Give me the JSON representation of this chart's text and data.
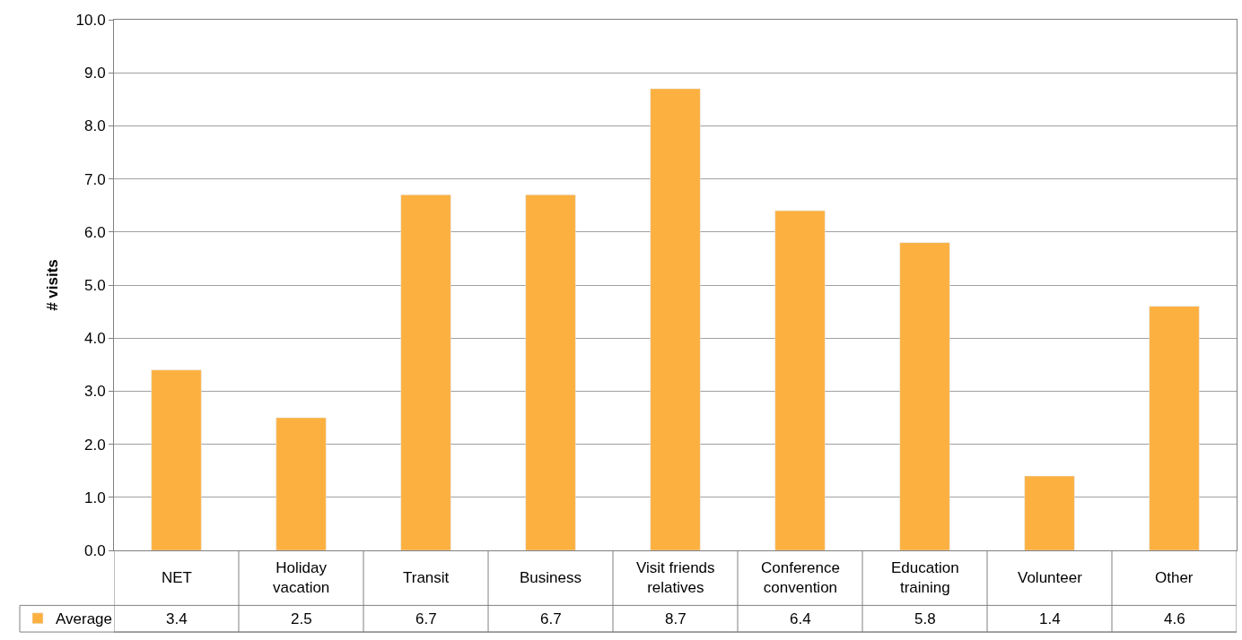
{
  "chart_data": {
    "type": "bar",
    "ylabel": "# visits",
    "categories": [
      "NET",
      "Holiday\nvacation",
      "Transit",
      "Business",
      "Visit friends\nrelatives",
      "Conference\nconvention",
      "Education\ntraining",
      "Volunteer",
      "Other"
    ],
    "series": [
      {
        "name": "Average",
        "color": "#fbb040",
        "values": [
          3.4,
          2.5,
          6.7,
          6.7,
          8.7,
          6.4,
          5.8,
          1.4,
          4.6
        ]
      }
    ],
    "ylim": [
      0,
      10
    ],
    "yticks": [
      {
        "value": 0,
        "label": "0.0"
      },
      {
        "value": 1,
        "label": "1.0"
      },
      {
        "value": 2,
        "label": "2.0"
      },
      {
        "value": 3,
        "label": "3.0"
      },
      {
        "value": 4,
        "label": "4.0"
      },
      {
        "value": 5,
        "label": "5.0"
      },
      {
        "value": 6,
        "label": "6.0"
      },
      {
        "value": 7,
        "label": "7.0"
      },
      {
        "value": 8,
        "label": "8.0"
      },
      {
        "value": 9,
        "label": "9.0"
      },
      {
        "value": 10,
        "label": "10.0"
      }
    ],
    "grid": "y",
    "data_labels": true,
    "legend": "bottom left"
  }
}
